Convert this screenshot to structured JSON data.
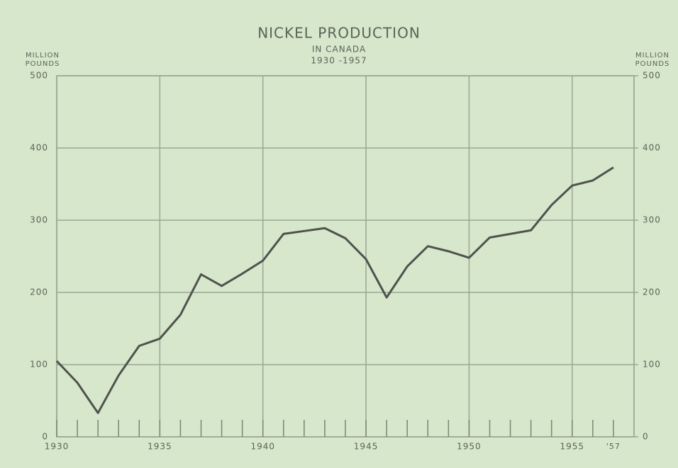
{
  "chart_data": {
    "type": "line",
    "title": "NICKEL PRODUCTION",
    "subtitle": [
      "IN CANADA",
      "1930 -1957"
    ],
    "ylabel": [
      "MILLION",
      "POUNDS"
    ],
    "y2label": [
      "MILLION",
      "POUNDS"
    ],
    "x": [
      1930,
      1931,
      1932,
      1933,
      1934,
      1935,
      1936,
      1937,
      1938,
      1939,
      1940,
      1941,
      1942,
      1943,
      1944,
      1945,
      1946,
      1947,
      1948,
      1949,
      1950,
      1951,
      1952,
      1953,
      1954,
      1955,
      1956,
      1957
    ],
    "values": [
      105,
      75,
      33,
      85,
      126,
      136,
      169,
      225,
      209,
      226,
      244,
      281,
      285,
      289,
      275,
      246,
      193,
      236,
      264,
      257,
      248,
      276,
      281,
      286,
      321,
      348,
      355,
      373
    ],
    "color": "#4f524d",
    "xlim": [
      1930,
      1958
    ],
    "xticks": [
      1930,
      1935,
      1940,
      1945,
      1950,
      1955,
      {
        "value": 1957,
        "label": "'57"
      }
    ],
    "ylim": [
      0,
      500
    ],
    "yticks": [
      0,
      100,
      200,
      300,
      400,
      500
    ],
    "y2lim": [
      0,
      500
    ],
    "y2ticks": [
      0,
      100,
      200,
      300,
      400,
      500
    ],
    "grid": true
  }
}
